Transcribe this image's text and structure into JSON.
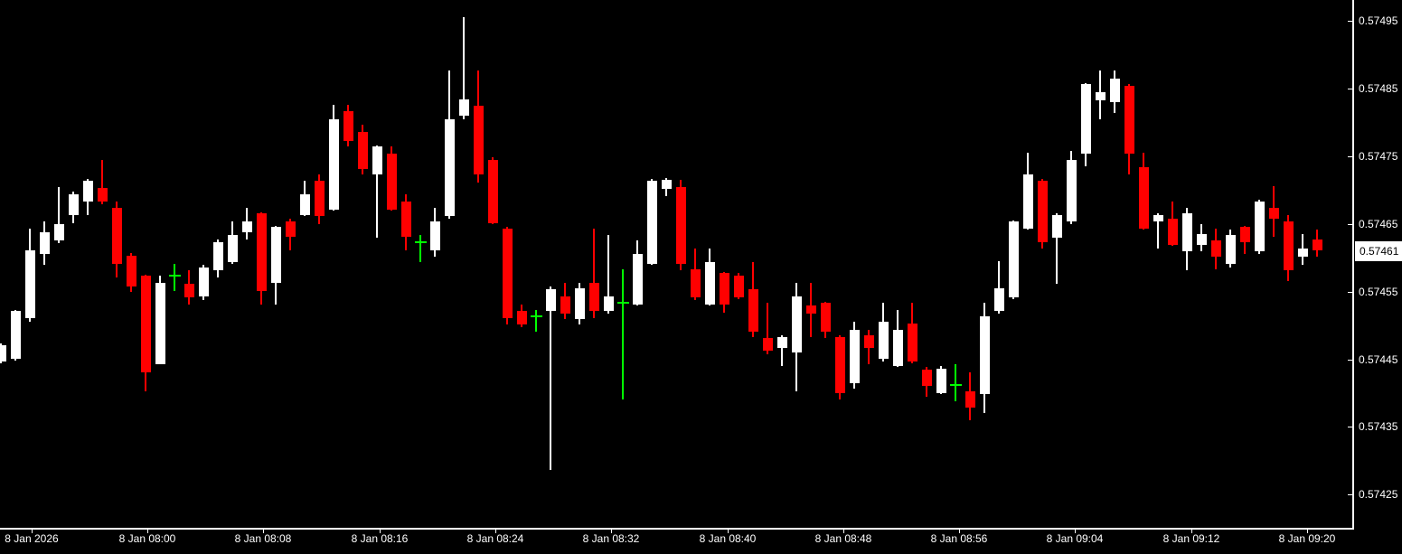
{
  "chart_data": {
    "type": "candlestick",
    "title": "",
    "grid": "off",
    "legend": "none",
    "y_axis": {
      "side": "right",
      "tick_labels": [
        "0.57495",
        "0.57485",
        "0.57475",
        "0.57465",
        "0.57455",
        "0.57445",
        "0.57435",
        "0.57425"
      ],
      "range": [
        0.57417,
        0.57498
      ]
    },
    "x_axis": {
      "side": "bottom",
      "tick_labels": [
        "8 Jan 2026",
        "8 Jan 08:00",
        "8 Jan 08:08",
        "8 Jan 08:16",
        "8 Jan 08:24",
        "8 Jan 08:32",
        "8 Jan 08:40",
        "8 Jan 08:48",
        "8 Jan 08:56",
        "8 Jan 09:04",
        "8 Jan 09:12",
        "8 Jan 09:20"
      ]
    },
    "current_price_label": "0.57461",
    "current_price": 0.57461,
    "colors": {
      "background": "#000000",
      "bull": "#FFFFFF",
      "bear": "#FF0000",
      "doji": "#00FF00",
      "axis_text": "#FFFFFF",
      "axis_line": "#FFFFFF",
      "current_price_bg": "#FFFFFF",
      "current_price_text": "#000000"
    },
    "candles": [
      {
        "t": "07:50",
        "dir": "up",
        "o": 0.574447,
        "h": 0.574474,
        "l": 0.574444,
        "c": 0.574471
      },
      {
        "t": "07:51",
        "dir": "up",
        "o": 0.574451,
        "h": 0.574523,
        "l": 0.574448,
        "c": 0.574521
      },
      {
        "t": "07:52",
        "dir": "up",
        "o": 0.574511,
        "h": 0.574643,
        "l": 0.574505,
        "c": 0.574611
      },
      {
        "t": "07:53",
        "dir": "up",
        "o": 0.574606,
        "h": 0.574654,
        "l": 0.57459,
        "c": 0.574637
      },
      {
        "t": "07:54",
        "dir": "up",
        "o": 0.574625,
        "h": 0.574705,
        "l": 0.574621,
        "c": 0.57465
      },
      {
        "t": "07:55",
        "dir": "up",
        "o": 0.574663,
        "h": 0.574697,
        "l": 0.574651,
        "c": 0.574694
      },
      {
        "t": "07:56",
        "dir": "up",
        "o": 0.574683,
        "h": 0.574717,
        "l": 0.574663,
        "c": 0.574714
      },
      {
        "t": "07:57",
        "dir": "down",
        "o": 0.574703,
        "h": 0.574745,
        "l": 0.574679,
        "c": 0.574683
      },
      {
        "t": "07:58",
        "dir": "down",
        "o": 0.574673,
        "h": 0.574683,
        "l": 0.574571,
        "c": 0.574591
      },
      {
        "t": "07:59",
        "dir": "down",
        "o": 0.574603,
        "h": 0.574607,
        "l": 0.57455,
        "c": 0.574558
      },
      {
        "t": "08:00",
        "dir": "down",
        "o": 0.574573,
        "h": 0.574575,
        "l": 0.574402,
        "c": 0.57443
      },
      {
        "t": "08:01",
        "dir": "up",
        "o": 0.574443,
        "h": 0.574574,
        "l": 0.574442,
        "c": 0.574563
      },
      {
        "t": "08:02",
        "dir": "doji",
        "o": 0.574573,
        "h": 0.574591,
        "l": 0.574551,
        "c": 0.574573
      },
      {
        "t": "08:03",
        "dir": "down",
        "o": 0.574561,
        "h": 0.574582,
        "l": 0.574531,
        "c": 0.574541
      },
      {
        "t": "08:04",
        "dir": "up",
        "o": 0.574543,
        "h": 0.57459,
        "l": 0.574538,
        "c": 0.574585
      },
      {
        "t": "08:05",
        "dir": "up",
        "o": 0.574582,
        "h": 0.574627,
        "l": 0.574571,
        "c": 0.574623
      },
      {
        "t": "08:06",
        "dir": "up",
        "o": 0.574594,
        "h": 0.574653,
        "l": 0.574591,
        "c": 0.574634
      },
      {
        "t": "08:07",
        "dir": "up",
        "o": 0.574638,
        "h": 0.574674,
        "l": 0.574627,
        "c": 0.574654
      },
      {
        "t": "08:08",
        "dir": "down",
        "o": 0.574665,
        "h": 0.574667,
        "l": 0.574531,
        "c": 0.574551
      },
      {
        "t": "08:09",
        "dir": "up",
        "o": 0.574563,
        "h": 0.574647,
        "l": 0.574531,
        "c": 0.574645
      },
      {
        "t": "08:10",
        "dir": "down",
        "o": 0.574654,
        "h": 0.574657,
        "l": 0.574611,
        "c": 0.574631
      },
      {
        "t": "08:11",
        "dir": "up",
        "o": 0.574663,
        "h": 0.574714,
        "l": 0.574661,
        "c": 0.574694
      },
      {
        "t": "08:12",
        "dir": "down",
        "o": 0.574714,
        "h": 0.574723,
        "l": 0.57465,
        "c": 0.574662
      },
      {
        "t": "08:13",
        "dir": "up",
        "o": 0.574671,
        "h": 0.574826,
        "l": 0.574669,
        "c": 0.574805
      },
      {
        "t": "08:14",
        "dir": "down",
        "o": 0.574816,
        "h": 0.574826,
        "l": 0.574764,
        "c": 0.574772
      },
      {
        "t": "08:15",
        "dir": "down",
        "o": 0.574786,
        "h": 0.574796,
        "l": 0.574723,
        "c": 0.574731
      },
      {
        "t": "08:16",
        "dir": "up",
        "o": 0.574723,
        "h": 0.574766,
        "l": 0.57463,
        "c": 0.574764
      },
      {
        "t": "08:17",
        "dir": "down",
        "o": 0.574754,
        "h": 0.574764,
        "l": 0.574669,
        "c": 0.574671
      },
      {
        "t": "08:18",
        "dir": "down",
        "o": 0.574683,
        "h": 0.574694,
        "l": 0.574611,
        "c": 0.574631
      },
      {
        "t": "08:19",
        "dir": "doji",
        "o": 0.574623,
        "h": 0.574634,
        "l": 0.574593,
        "c": 0.574623
      },
      {
        "t": "08:20",
        "dir": "up",
        "o": 0.574611,
        "h": 0.574673,
        "l": 0.574602,
        "c": 0.574653
      },
      {
        "t": "08:21",
        "dir": "up",
        "o": 0.574661,
        "h": 0.574876,
        "l": 0.574658,
        "c": 0.574805
      },
      {
        "t": "08:22",
        "dir": "up",
        "o": 0.57481,
        "h": 0.574956,
        "l": 0.574805,
        "c": 0.574834
      },
      {
        "t": "08:23",
        "dir": "down",
        "o": 0.574825,
        "h": 0.574876,
        "l": 0.574711,
        "c": 0.574723
      },
      {
        "t": "08:24",
        "dir": "down",
        "o": 0.574745,
        "h": 0.574748,
        "l": 0.574649,
        "c": 0.574651
      },
      {
        "t": "08:25",
        "dir": "down",
        "o": 0.574643,
        "h": 0.574646,
        "l": 0.574501,
        "c": 0.574511
      },
      {
        "t": "08:26",
        "dir": "down",
        "o": 0.574521,
        "h": 0.574531,
        "l": 0.574498,
        "c": 0.574502
      },
      {
        "t": "08:27",
        "dir": "doji",
        "o": 0.574513,
        "h": 0.574523,
        "l": 0.574491,
        "c": 0.574513
      },
      {
        "t": "08:28",
        "dir": "up",
        "o": 0.574521,
        "h": 0.574557,
        "l": 0.574287,
        "c": 0.574554
      },
      {
        "t": "08:29",
        "dir": "down",
        "o": 0.574543,
        "h": 0.574563,
        "l": 0.57451,
        "c": 0.574518
      },
      {
        "t": "08:30",
        "dir": "up",
        "o": 0.57451,
        "h": 0.574563,
        "l": 0.574501,
        "c": 0.574555
      },
      {
        "t": "08:31",
        "dir": "down",
        "o": 0.574563,
        "h": 0.574643,
        "l": 0.574511,
        "c": 0.574521
      },
      {
        "t": "08:32",
        "dir": "up",
        "o": 0.574521,
        "h": 0.574633,
        "l": 0.574517,
        "c": 0.574543
      },
      {
        "t": "08:33",
        "dir": "doji",
        "o": 0.574533,
        "h": 0.574583,
        "l": 0.574391,
        "c": 0.574533
      },
      {
        "t": "08:34",
        "dir": "up",
        "o": 0.574531,
        "h": 0.574625,
        "l": 0.57453,
        "c": 0.574605
      },
      {
        "t": "08:35",
        "dir": "up",
        "o": 0.574591,
        "h": 0.574717,
        "l": 0.574589,
        "c": 0.574714
      },
      {
        "t": "08:36",
        "dir": "up",
        "o": 0.574701,
        "h": 0.574718,
        "l": 0.574691,
        "c": 0.574715
      },
      {
        "t": "08:37",
        "dir": "down",
        "o": 0.574705,
        "h": 0.574715,
        "l": 0.574581,
        "c": 0.574591
      },
      {
        "t": "08:38",
        "dir": "down",
        "o": 0.574583,
        "h": 0.574613,
        "l": 0.574538,
        "c": 0.574542
      },
      {
        "t": "08:39",
        "dir": "up",
        "o": 0.574531,
        "h": 0.574613,
        "l": 0.574529,
        "c": 0.574594
      },
      {
        "t": "08:40",
        "dir": "down",
        "o": 0.574577,
        "h": 0.574579,
        "l": 0.574519,
        "c": 0.574531
      },
      {
        "t": "08:41",
        "dir": "down",
        "o": 0.574574,
        "h": 0.574577,
        "l": 0.574539,
        "c": 0.574542
      },
      {
        "t": "08:42",
        "dir": "down",
        "o": 0.574553,
        "h": 0.574594,
        "l": 0.574483,
        "c": 0.574491
      },
      {
        "t": "08:43",
        "dir": "down",
        "o": 0.574481,
        "h": 0.574534,
        "l": 0.574458,
        "c": 0.574463
      },
      {
        "t": "08:44",
        "dir": "up",
        "o": 0.574467,
        "h": 0.574486,
        "l": 0.57444,
        "c": 0.574483
      },
      {
        "t": "08:45",
        "dir": "up",
        "o": 0.57446,
        "h": 0.574563,
        "l": 0.574403,
        "c": 0.574543
      },
      {
        "t": "08:46",
        "dir": "down",
        "o": 0.57453,
        "h": 0.574563,
        "l": 0.574483,
        "c": 0.574517
      },
      {
        "t": "08:47",
        "dir": "down",
        "o": 0.574533,
        "h": 0.574535,
        "l": 0.574481,
        "c": 0.574491
      },
      {
        "t": "08:48",
        "dir": "down",
        "o": 0.574483,
        "h": 0.574486,
        "l": 0.57439,
        "c": 0.5744
      },
      {
        "t": "08:49",
        "dir": "up",
        "o": 0.574414,
        "h": 0.574506,
        "l": 0.574407,
        "c": 0.574494
      },
      {
        "t": "08:50",
        "dir": "down",
        "o": 0.574485,
        "h": 0.574493,
        "l": 0.574443,
        "c": 0.574467
      },
      {
        "t": "08:51",
        "dir": "up",
        "o": 0.57445,
        "h": 0.574533,
        "l": 0.574447,
        "c": 0.574505
      },
      {
        "t": "08:52",
        "dir": "up",
        "o": 0.57444,
        "h": 0.574523,
        "l": 0.574438,
        "c": 0.574493
      },
      {
        "t": "08:53",
        "dir": "down",
        "o": 0.574503,
        "h": 0.574534,
        "l": 0.574444,
        "c": 0.574447
      },
      {
        "t": "08:54",
        "dir": "down",
        "o": 0.574435,
        "h": 0.574438,
        "l": 0.574394,
        "c": 0.574411
      },
      {
        "t": "08:55",
        "dir": "up",
        "o": 0.5744,
        "h": 0.57444,
        "l": 0.574398,
        "c": 0.574436
      },
      {
        "t": "08:56",
        "dir": "doji",
        "o": 0.574412,
        "h": 0.574442,
        "l": 0.574388,
        "c": 0.574412
      },
      {
        "t": "08:57",
        "dir": "down",
        "o": 0.574403,
        "h": 0.574431,
        "l": 0.57436,
        "c": 0.574379
      },
      {
        "t": "08:58",
        "dir": "up",
        "o": 0.574399,
        "h": 0.574534,
        "l": 0.57437,
        "c": 0.574513
      },
      {
        "t": "08:59",
        "dir": "up",
        "o": 0.574521,
        "h": 0.574595,
        "l": 0.574518,
        "c": 0.574555
      },
      {
        "t": "09:00",
        "dir": "up",
        "o": 0.574542,
        "h": 0.574655,
        "l": 0.574539,
        "c": 0.574653
      },
      {
        "t": "09:01",
        "dir": "up",
        "o": 0.574643,
        "h": 0.574755,
        "l": 0.574641,
        "c": 0.574723
      },
      {
        "t": "09:02",
        "dir": "down",
        "o": 0.574714,
        "h": 0.574717,
        "l": 0.574613,
        "c": 0.574623
      },
      {
        "t": "09:03",
        "dir": "up",
        "o": 0.57463,
        "h": 0.574666,
        "l": 0.574562,
        "c": 0.574663
      },
      {
        "t": "09:04",
        "dir": "up",
        "o": 0.574653,
        "h": 0.574758,
        "l": 0.57465,
        "c": 0.574745
      },
      {
        "t": "09:05",
        "dir": "up",
        "o": 0.574754,
        "h": 0.574858,
        "l": 0.574735,
        "c": 0.574856
      },
      {
        "t": "09:06",
        "dir": "up",
        "o": 0.574832,
        "h": 0.574877,
        "l": 0.574805,
        "c": 0.574845
      },
      {
        "t": "09:07",
        "dir": "up",
        "o": 0.57483,
        "h": 0.574877,
        "l": 0.574814,
        "c": 0.574865
      },
      {
        "t": "09:08",
        "dir": "down",
        "o": 0.574854,
        "h": 0.574857,
        "l": 0.574723,
        "c": 0.574754
      },
      {
        "t": "09:09",
        "dir": "down",
        "o": 0.574734,
        "h": 0.574755,
        "l": 0.574641,
        "c": 0.574643
      },
      {
        "t": "09:10",
        "dir": "up",
        "o": 0.574653,
        "h": 0.574666,
        "l": 0.574613,
        "c": 0.574663
      },
      {
        "t": "09:11",
        "dir": "down",
        "o": 0.574657,
        "h": 0.574683,
        "l": 0.574617,
        "c": 0.574619
      },
      {
        "t": "09:12",
        "dir": "up",
        "o": 0.57461,
        "h": 0.574673,
        "l": 0.574582,
        "c": 0.574666
      },
      {
        "t": "09:13",
        "dir": "up",
        "o": 0.574619,
        "h": 0.57465,
        "l": 0.57461,
        "c": 0.574635
      },
      {
        "t": "09:14",
        "dir": "down",
        "o": 0.574626,
        "h": 0.574643,
        "l": 0.574583,
        "c": 0.574602
      },
      {
        "t": "09:15",
        "dir": "up",
        "o": 0.574591,
        "h": 0.574642,
        "l": 0.574585,
        "c": 0.574634
      },
      {
        "t": "09:16",
        "dir": "down",
        "o": 0.574645,
        "h": 0.574647,
        "l": 0.574606,
        "c": 0.574623
      },
      {
        "t": "09:17",
        "dir": "up",
        "o": 0.574609,
        "h": 0.574686,
        "l": 0.574606,
        "c": 0.574683
      },
      {
        "t": "09:18",
        "dir": "down",
        "o": 0.574673,
        "h": 0.574706,
        "l": 0.574631,
        "c": 0.574658
      },
      {
        "t": "09:19",
        "dir": "down",
        "o": 0.574653,
        "h": 0.574663,
        "l": 0.574565,
        "c": 0.574581
      },
      {
        "t": "09:20",
        "dir": "up",
        "o": 0.574601,
        "h": 0.574635,
        "l": 0.57459,
        "c": 0.574614
      },
      {
        "t": "09:21",
        "dir": "down",
        "o": 0.574627,
        "h": 0.574641,
        "l": 0.574601,
        "c": 0.574611
      }
    ]
  }
}
